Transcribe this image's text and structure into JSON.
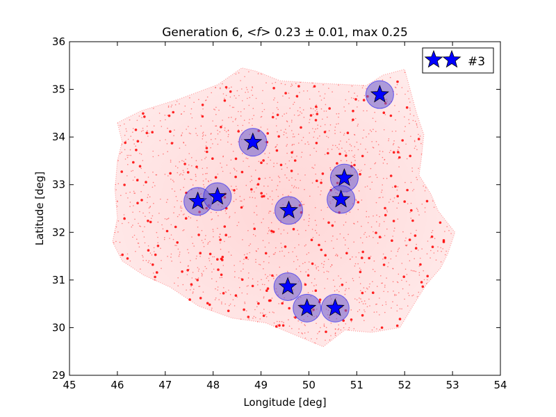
{
  "chart_data": {
    "type": "scatter",
    "title": "Generation 6, ⟨f⟩ 0.23 ± 0.01, max 0.25",
    "title_parts": {
      "prefix": "Generation 6, ",
      "f_symbol": "<f>",
      "stats": " 0.23 ± 0.01, max 0.25"
    },
    "xlabel": "Longitude [deg]",
    "ylabel": "Latitude [deg]",
    "xlim": [
      45,
      54
    ],
    "ylim": [
      29,
      36
    ],
    "xticks": [
      "45",
      "46",
      "47",
      "48",
      "49",
      "50",
      "51",
      "52",
      "53",
      "54"
    ],
    "yticks": [
      "29",
      "30",
      "31",
      "32",
      "33",
      "34",
      "35",
      "36"
    ],
    "grid": false,
    "legend": {
      "position": "top-right",
      "label": "#3",
      "marker": "star"
    },
    "background_points_color": "#ff0000",
    "star_color": "#0000ff",
    "halo_color": "#6a5acd",
    "region_outline": [
      [
        46.0,
        34.3
      ],
      [
        46.5,
        34.55
      ],
      [
        47.3,
        34.8
      ],
      [
        48.1,
        35.1
      ],
      [
        48.6,
        35.45
      ],
      [
        48.9,
        35.38
      ],
      [
        49.4,
        35.18
      ],
      [
        50.2,
        35.13
      ],
      [
        51.2,
        35.08
      ],
      [
        51.55,
        35.3
      ],
      [
        52.0,
        35.42
      ],
      [
        52.1,
        35.05
      ],
      [
        52.25,
        34.5
      ],
      [
        52.4,
        34.05
      ],
      [
        52.35,
        33.55
      ],
      [
        52.3,
        33.2
      ],
      [
        52.55,
        32.8
      ],
      [
        52.7,
        32.45
      ],
      [
        53.05,
        32.0
      ],
      [
        52.9,
        31.55
      ],
      [
        52.75,
        31.25
      ],
      [
        52.45,
        30.9
      ],
      [
        52.2,
        30.5
      ],
      [
        51.9,
        30.0
      ],
      [
        51.3,
        29.9
      ],
      [
        50.75,
        29.95
      ],
      [
        50.3,
        29.6
      ],
      [
        49.7,
        29.85
      ],
      [
        49.1,
        30.1
      ],
      [
        48.4,
        30.2
      ],
      [
        47.7,
        30.45
      ],
      [
        47.1,
        30.85
      ],
      [
        46.55,
        31.1
      ],
      [
        46.1,
        31.4
      ],
      [
        45.9,
        31.8
      ],
      [
        46.0,
        32.3
      ],
      [
        45.95,
        32.9
      ],
      [
        46.0,
        33.5
      ],
      [
        46.1,
        33.9
      ],
      [
        46.0,
        34.3
      ]
    ],
    "points": [
      {
        "x": 47.68,
        "y": 32.65
      },
      {
        "x": 48.09,
        "y": 32.75
      },
      {
        "x": 48.83,
        "y": 33.89
      },
      {
        "x": 49.58,
        "y": 32.46
      },
      {
        "x": 50.74,
        "y": 33.14
      },
      {
        "x": 50.67,
        "y": 32.69
      },
      {
        "x": 51.48,
        "y": 34.89
      },
      {
        "x": 49.56,
        "y": 30.86
      },
      {
        "x": 49.96,
        "y": 30.41
      },
      {
        "x": 50.55,
        "y": 30.41
      }
    ]
  }
}
